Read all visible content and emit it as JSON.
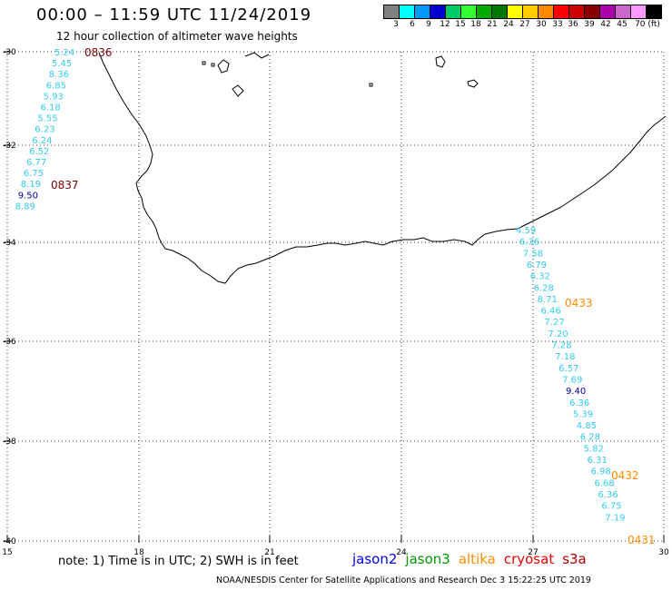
{
  "header": {
    "title": "00:00 – 11:59 UTC 11/24/2019",
    "subtitle": "12 hour collection of altimeter wave heights"
  },
  "colorbar": {
    "swatches": [
      "#808080",
      "#00ffff",
      "#0099ff",
      "#0000cc",
      "#00cc66",
      "#33ff33",
      "#00aa00",
      "#007700",
      "#ffff00",
      "#ffcc00",
      "#ff8800",
      "#ff0000",
      "#cc0000",
      "#880000",
      "#aa00aa",
      "#cc66cc",
      "#ff99ff",
      "#000000"
    ],
    "labels": [
      "3",
      "6",
      "9",
      "12",
      "15",
      "18",
      "21",
      "24",
      "27",
      "30",
      "33",
      "36",
      "39",
      "42",
      "45",
      "70 (ft)"
    ]
  },
  "axes": {
    "lon_ticks": [
      "15",
      "18",
      "21",
      "24",
      "27",
      "30"
    ],
    "lat_ticks": [
      "-30",
      "-32",
      "-34",
      "-36",
      "-38",
      "-40"
    ],
    "lon_range": [
      15,
      30
    ],
    "lat_range": [
      -40,
      -30
    ]
  },
  "tracks": [
    {
      "name": "west-track",
      "times": [
        {
          "label": "0836",
          "color": "#7a0000"
        },
        {
          "label": "0837",
          "color": "#7a0000"
        }
      ],
      "points": [
        {
          "v": "5.24",
          "c": "#33ccee"
        },
        {
          "v": "5.45",
          "c": "#33ccee"
        },
        {
          "v": "8.36",
          "c": "#33ccee"
        },
        {
          "v": "6.85",
          "c": "#33ccee"
        },
        {
          "v": "5.93",
          "c": "#33ccee"
        },
        {
          "v": "6.18",
          "c": "#33ccee"
        },
        {
          "v": "5.55",
          "c": "#33ccee"
        },
        {
          "v": "6.23",
          "c": "#33ccee"
        },
        {
          "v": "6.24",
          "c": "#33ccee"
        },
        {
          "v": "6.52",
          "c": "#33ccee"
        },
        {
          "v": "6.77",
          "c": "#33ccee"
        },
        {
          "v": "6.75",
          "c": "#33ccee"
        },
        {
          "v": "8.19",
          "c": "#33ccee"
        },
        {
          "v": "9.50",
          "c": "#0000aa"
        },
        {
          "v": "8.89",
          "c": "#33ccee"
        }
      ]
    },
    {
      "name": "east-track",
      "times": [
        {
          "label": "0433",
          "color": "#ff8c00"
        },
        {
          "label": "0432",
          "color": "#ff8c00"
        },
        {
          "label": "0431",
          "color": "#ff8c00"
        }
      ],
      "points": [
        {
          "v": "4.59",
          "c": "#33ccee"
        },
        {
          "v": "6.36",
          "c": "#33ccee"
        },
        {
          "v": "7.58",
          "c": "#33ccee"
        },
        {
          "v": "6.79",
          "c": "#33ccee"
        },
        {
          "v": "6.32",
          "c": "#33ccee"
        },
        {
          "v": "6.28",
          "c": "#33ccee"
        },
        {
          "v": "8.71",
          "c": "#33ccee"
        },
        {
          "v": "6.46",
          "c": "#33ccee"
        },
        {
          "v": "7.27",
          "c": "#33ccee"
        },
        {
          "v": "7.20",
          "c": "#33ccee"
        },
        {
          "v": "7.28",
          "c": "#33ccee"
        },
        {
          "v": "7.18",
          "c": "#33ccee"
        },
        {
          "v": "6.57",
          "c": "#33ccee"
        },
        {
          "v": "7.69",
          "c": "#33ccee"
        },
        {
          "v": "9.40",
          "c": "#0000aa"
        },
        {
          "v": "6.36",
          "c": "#33ccee"
        },
        {
          "v": "5.39",
          "c": "#33ccee"
        },
        {
          "v": "4.85",
          "c": "#33ccee"
        },
        {
          "v": "6.28",
          "c": "#33ccee"
        },
        {
          "v": "5.82",
          "c": "#33ccee"
        },
        {
          "v": "6.31",
          "c": "#33ccee"
        },
        {
          "v": "6.98",
          "c": "#33ccee"
        },
        {
          "v": "6.68",
          "c": "#33ccee"
        },
        {
          "v": "6.36",
          "c": "#33ccee"
        },
        {
          "v": "6.75",
          "c": "#33ccee"
        },
        {
          "v": "7.19",
          "c": "#33ccee"
        }
      ]
    }
  ],
  "note": "note: 1) Time is in UTC; 2) SWH is in feet",
  "legend": [
    {
      "label": "jason2",
      "color": "#0000ee"
    },
    {
      "label": "jason3",
      "color": "#009900"
    },
    {
      "label": "altika",
      "color": "#ff8c00"
    },
    {
      "label": "cryosat",
      "color": "#ee0000"
    },
    {
      "label": "s3a",
      "color": "#aa0000"
    }
  ],
  "credit": "NOAA/NESDIS Center for Satellite Applications and Research     Dec  3 15:22:25 UTC 2019"
}
